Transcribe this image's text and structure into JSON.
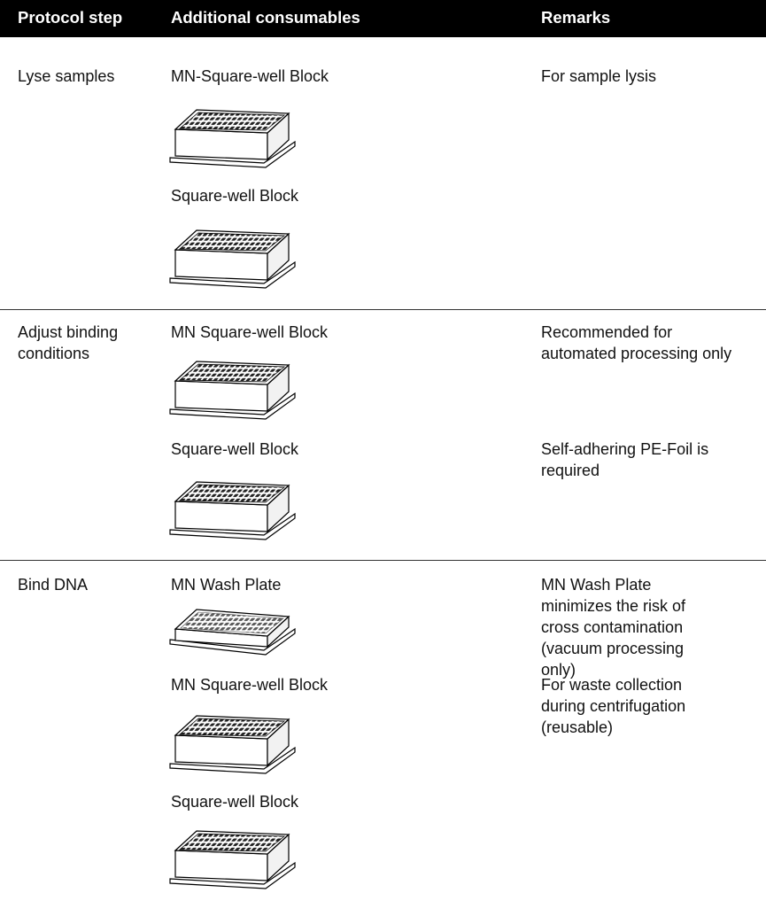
{
  "table": {
    "columns": [
      "Protocol step",
      "Additional consumables",
      "Remarks"
    ],
    "rows": [
      {
        "step": "Lyse samples",
        "items": [
          {
            "consumable": "MN-Square-well Block",
            "remark": "For sample lysis"
          },
          {
            "consumable": "Square-well Block"
          }
        ]
      },
      {
        "step": "Adjust binding conditions",
        "items": [
          {
            "consumable": "MN Square-well Block",
            "remark": "Recommended for automated processing only"
          },
          {
            "consumable": "Square-well Block",
            "remark": "Self-adhering PE-Foil is required"
          }
        ]
      },
      {
        "step": "Bind DNA",
        "items": [
          {
            "consumable": "MN Wash Plate",
            "remark": "MN Wash Plate minimizes the risk of cross contamination (vacuum processing only)"
          },
          {
            "consumable": "MN Square-well Block",
            "remark": "For waste collection during centrifugation (reusable)"
          },
          {
            "consumable": "Square-well Block"
          }
        ]
      }
    ]
  }
}
